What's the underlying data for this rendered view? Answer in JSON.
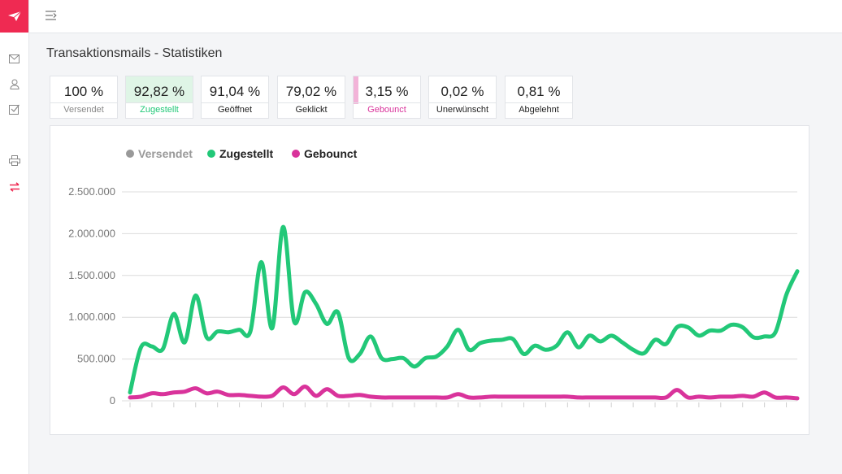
{
  "colors": {
    "brand": "#ef2a52",
    "green": "#22c878",
    "pink": "#d9339b",
    "gray": "#999999"
  },
  "sidebar": {
    "items": [
      {
        "icon": "mail-icon"
      },
      {
        "icon": "user-icon"
      },
      {
        "icon": "checkbox-icon"
      },
      {
        "icon": "printer-icon"
      },
      {
        "icon": "transfer-icon"
      }
    ]
  },
  "header": {
    "title": "Transaktionsmails - Statistiken"
  },
  "stats": [
    {
      "value": "100 %",
      "label": "Versendet"
    },
    {
      "value": "92,82 %",
      "label": "Zugestellt"
    },
    {
      "value": "91,04 %",
      "label": "Geöffnet"
    },
    {
      "value": "79,02 %",
      "label": "Geklickt"
    },
    {
      "value": "3,15 %",
      "label": "Gebounct"
    },
    {
      "value": "0,02 %",
      "label": "Unerwünscht"
    },
    {
      "value": "0,81 %",
      "label": "Abgelehnt"
    }
  ],
  "chart_data": {
    "type": "line",
    "title": "",
    "xlabel": "",
    "ylabel": "",
    "ylim": [
      0,
      2500000
    ],
    "yticks": [
      "0",
      "500.000",
      "1.000.000",
      "1.500.000",
      "2.000.000",
      "2.500.000"
    ],
    "legend": [
      "Versendet",
      "Zugestellt",
      "Gebounct"
    ],
    "series": [
      {
        "name": "Versendet",
        "color": "#999999",
        "enabled": false,
        "values": []
      },
      {
        "name": "Zugestellt",
        "color": "#22c878",
        "enabled": true,
        "values": [
          100000,
          640000,
          650000,
          620000,
          1040000,
          700000,
          1260000,
          760000,
          830000,
          820000,
          850000,
          830000,
          1660000,
          870000,
          2080000,
          950000,
          1300000,
          1160000,
          920000,
          1060000,
          510000,
          560000,
          770000,
          510000,
          500000,
          510000,
          410000,
          510000,
          530000,
          650000,
          850000,
          610000,
          690000,
          720000,
          730000,
          740000,
          560000,
          660000,
          610000,
          660000,
          820000,
          640000,
          780000,
          710000,
          780000,
          700000,
          610000,
          570000,
          730000,
          680000,
          880000,
          880000,
          780000,
          840000,
          840000,
          910000,
          880000,
          760000,
          770000,
          820000,
          1270000,
          1550000
        ]
      },
      {
        "name": "Gebounct",
        "color": "#d9339b",
        "enabled": true,
        "values": [
          40000,
          50000,
          90000,
          80000,
          100000,
          110000,
          150000,
          90000,
          110000,
          70000,
          70000,
          60000,
          50000,
          60000,
          160000,
          80000,
          170000,
          60000,
          140000,
          60000,
          60000,
          70000,
          50000,
          40000,
          40000,
          40000,
          40000,
          40000,
          40000,
          40000,
          80000,
          40000,
          40000,
          50000,
          50000,
          50000,
          50000,
          50000,
          50000,
          50000,
          50000,
          40000,
          40000,
          40000,
          40000,
          40000,
          40000,
          40000,
          40000,
          40000,
          130000,
          40000,
          50000,
          40000,
          50000,
          50000,
          60000,
          50000,
          100000,
          40000,
          40000,
          30000
        ]
      }
    ]
  }
}
